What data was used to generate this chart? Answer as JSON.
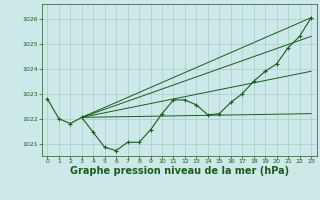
{
  "background_color": "#cce8e8",
  "grid_color": "#aacccc",
  "line_color": "#1a5c1a",
  "xlabel": "Graphe pression niveau de la mer (hPa)",
  "xlabel_fontsize": 7,
  "xlim": [
    -0.5,
    23.5
  ],
  "ylim": [
    1020.5,
    1026.6
  ],
  "yticks": [
    1021,
    1022,
    1023,
    1024,
    1025,
    1026
  ],
  "xticks": [
    0,
    1,
    2,
    3,
    4,
    5,
    6,
    7,
    8,
    9,
    10,
    11,
    12,
    13,
    14,
    15,
    16,
    17,
    18,
    19,
    20,
    21,
    22,
    23
  ],
  "main_line": [
    [
      0,
      1022.8
    ],
    [
      1,
      1022.0
    ],
    [
      2,
      1021.8
    ],
    [
      3,
      1022.05
    ],
    [
      4,
      1021.45
    ],
    [
      5,
      1020.85
    ],
    [
      6,
      1020.72
    ],
    [
      7,
      1021.05
    ],
    [
      8,
      1021.05
    ],
    [
      9,
      1021.55
    ],
    [
      10,
      1022.2
    ],
    [
      11,
      1022.75
    ],
    [
      12,
      1022.75
    ],
    [
      13,
      1022.55
    ],
    [
      14,
      1022.15
    ],
    [
      15,
      1022.2
    ],
    [
      16,
      1022.65
    ],
    [
      17,
      1023.0
    ],
    [
      18,
      1023.5
    ],
    [
      19,
      1023.9
    ],
    [
      20,
      1024.2
    ],
    [
      21,
      1024.85
    ],
    [
      22,
      1025.3
    ],
    [
      23,
      1026.05
    ]
  ],
  "trend_lines": [
    [
      [
        3,
        1022.05
      ],
      [
        23,
        1022.2
      ]
    ],
    [
      [
        3,
        1022.05
      ],
      [
        23,
        1023.9
      ]
    ],
    [
      [
        3,
        1022.05
      ],
      [
        23,
        1025.3
      ]
    ],
    [
      [
        3,
        1022.05
      ],
      [
        23,
        1026.05
      ]
    ]
  ]
}
